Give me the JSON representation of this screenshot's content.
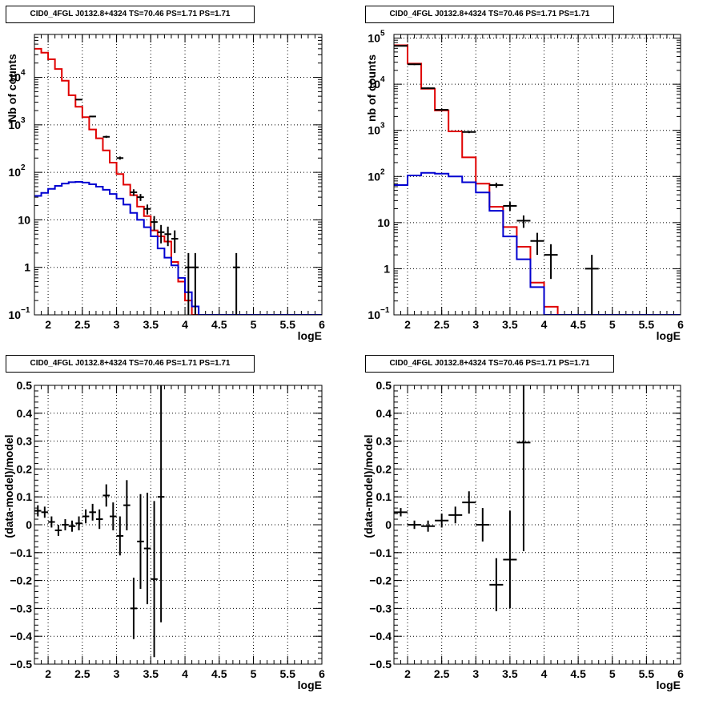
{
  "chart_data": [
    {
      "type": "line",
      "title": "CID0_4FGL J0132.8+4324 TS=70.46 PS=1.71 PS=1.71",
      "xlabel": "logE",
      "ylabel": "Nb of counts",
      "xlim": [
        1.8,
        6.0
      ],
      "ylim": [
        0.1,
        80000
      ],
      "yscale": "log",
      "grid": true,
      "x_ticks": [
        "2",
        "2.5",
        "3",
        "3.5",
        "4",
        "4.5",
        "5",
        "5.5",
        "6"
      ],
      "y_ticks": [
        {
          "v": 0.1,
          "base": "10",
          "exp": "−1"
        },
        {
          "v": 1,
          "label": "1"
        },
        {
          "v": 10,
          "label": "10"
        },
        {
          "v": 100,
          "base": "10",
          "exp": "2"
        },
        {
          "v": 1000,
          "base": "10",
          "exp": "3"
        },
        {
          "v": 10000,
          "base": "10",
          "exp": "4"
        }
      ],
      "bin_width": 0.1,
      "series": [
        {
          "color": "#e00000",
          "style": "step",
          "bin_edges_start": 1.8,
          "values": [
            40000,
            33000,
            24000,
            15000,
            8500,
            4200,
            2400,
            1450,
            800,
            520,
            290,
            160,
            92,
            55,
            33,
            19,
            12,
            6,
            4.5,
            3.5,
            1.3,
            0.5,
            0.2,
            0.1
          ]
        },
        {
          "color": "#0000d0",
          "style": "step",
          "bin_edges_start": 1.8,
          "values": [
            32,
            37,
            45,
            52,
            58,
            62,
            63,
            61,
            56,
            50,
            43,
            35,
            28,
            21,
            14,
            10,
            7,
            4.5,
            2.5,
            1.6,
            1.1,
            0.6,
            0.3,
            0.15,
            0.1,
            0.1,
            0.1,
            0.1,
            0.1,
            0.1,
            0.1,
            0.1,
            0.1,
            0.1,
            0.1,
            0.1,
            0.1,
            0.1,
            0.1,
            0.1,
            0.1,
            0.1
          ]
        }
      ],
      "points": [
        {
          "x": 2.45,
          "y": 3400,
          "ylo": 3300,
          "yhi": 3500,
          "xerr": 0.05
        },
        {
          "x": 2.65,
          "y": 1500,
          "ylo": 1450,
          "yhi": 1550,
          "xerr": 0.05
        },
        {
          "x": 2.85,
          "y": 560,
          "ylo": 530,
          "yhi": 590,
          "xerr": 0.05
        },
        {
          "x": 3.05,
          "y": 200,
          "ylo": 185,
          "yhi": 215,
          "xerr": 0.05
        },
        {
          "x": 3.25,
          "y": 38,
          "ylo": 32,
          "yhi": 44,
          "xerr": 0.05
        },
        {
          "x": 3.35,
          "y": 30,
          "ylo": 25,
          "yhi": 35,
          "xerr": 0.05
        },
        {
          "x": 3.45,
          "y": 17,
          "ylo": 13,
          "yhi": 21,
          "xerr": 0.05
        },
        {
          "x": 3.55,
          "y": 9,
          "ylo": 6,
          "yhi": 12,
          "xerr": 0.05
        },
        {
          "x": 3.65,
          "y": 5.5,
          "ylo": 3.2,
          "yhi": 7.8,
          "xerr": 0.05
        },
        {
          "x": 3.75,
          "y": 5,
          "ylo": 2.8,
          "yhi": 7.2,
          "xerr": 0.05
        },
        {
          "x": 3.85,
          "y": 4,
          "ylo": 2,
          "yhi": 6,
          "xerr": 0.05
        },
        {
          "x": 4.05,
          "y": 1,
          "ylo": 0.1,
          "yhi": 2.0,
          "xerr": 0.05
        },
        {
          "x": 4.15,
          "y": 1,
          "ylo": 0.1,
          "yhi": 2.0,
          "xerr": 0.05
        },
        {
          "x": 4.75,
          "y": 1,
          "ylo": 0.1,
          "yhi": 2.0,
          "xerr": 0.05
        }
      ]
    },
    {
      "type": "line",
      "title": "CID0_4FGL J0132.8+4324 TS=70.46 PS=1.71 PS=1.71",
      "xlabel": "logE",
      "ylabel": "nb of counts",
      "xlim": [
        1.8,
        6.0
      ],
      "ylim": [
        0.1,
        120000
      ],
      "yscale": "log",
      "grid": true,
      "x_ticks": [
        "2",
        "2.5",
        "3",
        "3.5",
        "4",
        "4.5",
        "5",
        "5.5",
        "6"
      ],
      "y_ticks": [
        {
          "v": 0.1,
          "base": "10",
          "exp": "−1"
        },
        {
          "v": 1,
          "label": "1"
        },
        {
          "v": 10,
          "label": "10"
        },
        {
          "v": 100,
          "base": "10",
          "exp": "2"
        },
        {
          "v": 1000,
          "base": "10",
          "exp": "3"
        },
        {
          "v": 10000,
          "base": "10",
          "exp": "4"
        },
        {
          "v": 100000,
          "base": "10",
          "exp": "5"
        }
      ],
      "bin_width": 0.2,
      "series": [
        {
          "color": "#e00000",
          "style": "step",
          "bin_edges_start": 1.8,
          "values": [
            70000,
            28000,
            8000,
            2700,
            950,
            260,
            70,
            22,
            8,
            3,
            0.5,
            0.15,
            0.1,
            0.1,
            0.1,
            0.1,
            0.1,
            0.1,
            0.1,
            0.1,
            0.1
          ]
        },
        {
          "color": "#0000d0",
          "style": "step",
          "bin_edges_start": 1.8,
          "values": [
            65,
            105,
            120,
            115,
            100,
            75,
            45,
            18,
            5,
            1.6,
            0.4,
            0.1,
            0.1,
            0.1,
            0.1,
            0.1,
            0.1,
            0.1,
            0.1,
            0.1,
            0.1
          ]
        }
      ],
      "points": [
        {
          "x": 1.9,
          "y": 68000,
          "ylo": 66000,
          "yhi": 70000,
          "xerr": 0.1
        },
        {
          "x": 2.1,
          "y": 27000,
          "ylo": 26000,
          "yhi": 28000,
          "xerr": 0.1
        },
        {
          "x": 2.3,
          "y": 8200,
          "ylo": 7900,
          "yhi": 8500,
          "xerr": 0.1
        },
        {
          "x": 2.5,
          "y": 2800,
          "ylo": 2650,
          "yhi": 2950,
          "xerr": 0.1
        },
        {
          "x": 2.9,
          "y": 920,
          "ylo": 870,
          "yhi": 970,
          "xerr": 0.1
        },
        {
          "x": 3.3,
          "y": 65,
          "ylo": 57,
          "yhi": 73,
          "xerr": 0.1
        },
        {
          "x": 3.5,
          "y": 23,
          "ylo": 18,
          "yhi": 28,
          "xerr": 0.1
        },
        {
          "x": 3.7,
          "y": 11,
          "ylo": 7.7,
          "yhi": 14.3,
          "xerr": 0.1
        },
        {
          "x": 3.9,
          "y": 4,
          "ylo": 2,
          "yhi": 6,
          "xerr": 0.1
        },
        {
          "x": 4.1,
          "y": 2,
          "ylo": 0.6,
          "yhi": 3.4,
          "xerr": 0.1
        },
        {
          "x": 4.7,
          "y": 1,
          "ylo": 0.1,
          "yhi": 2.0,
          "xerr": 0.1
        }
      ]
    },
    {
      "type": "scatter",
      "title": "CID0_4FGL J0132.8+4324 TS=70.46 PS=1.71 PS=1.71",
      "xlabel": "logE",
      "ylabel": "(data-model)/model",
      "xlim": [
        1.8,
        6.0
      ],
      "ylim": [
        -0.5,
        0.5
      ],
      "grid": true,
      "x_ticks": [
        "2",
        "2.5",
        "3",
        "3.5",
        "4",
        "4.5",
        "5",
        "5.5",
        "6"
      ],
      "y_ticks": [
        "−0.5",
        "−0.4",
        "−0.3",
        "−0.2",
        "−0.1",
        "0",
        "0.1",
        "0.2",
        "0.3",
        "0.4",
        "0.5"
      ],
      "points": [
        {
          "x": 1.85,
          "y": 0.05,
          "yerr": 0.02,
          "xerr": 0.05
        },
        {
          "x": 1.95,
          "y": 0.045,
          "yerr": 0.02,
          "xerr": 0.05
        },
        {
          "x": 2.05,
          "y": 0.01,
          "yerr": 0.02,
          "xerr": 0.05
        },
        {
          "x": 2.15,
          "y": -0.02,
          "yerr": 0.02,
          "xerr": 0.05
        },
        {
          "x": 2.25,
          "y": 0.0,
          "yerr": 0.02,
          "xerr": 0.05
        },
        {
          "x": 2.35,
          "y": -0.005,
          "yerr": 0.02,
          "xerr": 0.05
        },
        {
          "x": 2.45,
          "y": 0.005,
          "yerr": 0.025,
          "xerr": 0.05
        },
        {
          "x": 2.55,
          "y": 0.03,
          "yerr": 0.025,
          "xerr": 0.05
        },
        {
          "x": 2.65,
          "y": 0.045,
          "yerr": 0.03,
          "xerr": 0.05
        },
        {
          "x": 2.75,
          "y": 0.02,
          "yerr": 0.035,
          "xerr": 0.05
        },
        {
          "x": 2.85,
          "y": 0.105,
          "yerr": 0.04,
          "xerr": 0.05
        },
        {
          "x": 2.95,
          "y": 0.03,
          "yerr": 0.05,
          "xerr": 0.05
        },
        {
          "x": 3.05,
          "y": -0.04,
          "yerr": 0.07,
          "xerr": 0.05
        },
        {
          "x": 3.15,
          "y": 0.07,
          "yerr": 0.09,
          "xerr": 0.05
        },
        {
          "x": 3.25,
          "y": -0.3,
          "yerr": 0.11,
          "xerr": 0.05
        },
        {
          "x": 3.35,
          "y": -0.06,
          "yerr": 0.17,
          "xerr": 0.05
        },
        {
          "x": 3.45,
          "y": -0.085,
          "yerr": 0.2,
          "xerr": 0.05
        },
        {
          "x": 3.55,
          "y": -0.195,
          "yerr": 0.28,
          "xerr": 0.05
        },
        {
          "x": 3.65,
          "y": 0.1,
          "yerr": 0.45,
          "xerr": 0.05
        }
      ]
    },
    {
      "type": "scatter",
      "title": "CID0_4FGL J0132.8+4324 TS=70.46 PS=1.71 PS=1.71",
      "xlabel": "logE",
      "ylabel": "(data-model)/model",
      "xlim": [
        1.8,
        6.0
      ],
      "ylim": [
        -0.5,
        0.5
      ],
      "grid": true,
      "x_ticks": [
        "2",
        "2.5",
        "3",
        "3.5",
        "4",
        "4.5",
        "5",
        "5.5",
        "6"
      ],
      "y_ticks": [
        "−0.5",
        "−0.4",
        "−0.3",
        "−0.2",
        "−0.1",
        "0",
        "0.1",
        "0.2",
        "0.3",
        "0.4",
        "0.5"
      ],
      "points": [
        {
          "x": 1.9,
          "y": 0.045,
          "yerr": 0.015,
          "xerr": 0.1
        },
        {
          "x": 2.1,
          "y": 0.0,
          "yerr": 0.015,
          "xerr": 0.1
        },
        {
          "x": 2.3,
          "y": -0.005,
          "yerr": 0.02,
          "xerr": 0.1
        },
        {
          "x": 2.5,
          "y": 0.015,
          "yerr": 0.025,
          "xerr": 0.1
        },
        {
          "x": 2.7,
          "y": 0.035,
          "yerr": 0.03,
          "xerr": 0.1
        },
        {
          "x": 2.9,
          "y": 0.08,
          "yerr": 0.04,
          "xerr": 0.1
        },
        {
          "x": 3.1,
          "y": 0.0,
          "yerr": 0.06,
          "xerr": 0.1
        },
        {
          "x": 3.3,
          "y": -0.215,
          "yerr": 0.095,
          "xerr": 0.1
        },
        {
          "x": 3.5,
          "y": -0.125,
          "yerr": 0.175,
          "xerr": 0.1
        },
        {
          "x": 3.7,
          "y": 0.295,
          "yerr": 0.39,
          "xerr": 0.1
        }
      ]
    }
  ]
}
